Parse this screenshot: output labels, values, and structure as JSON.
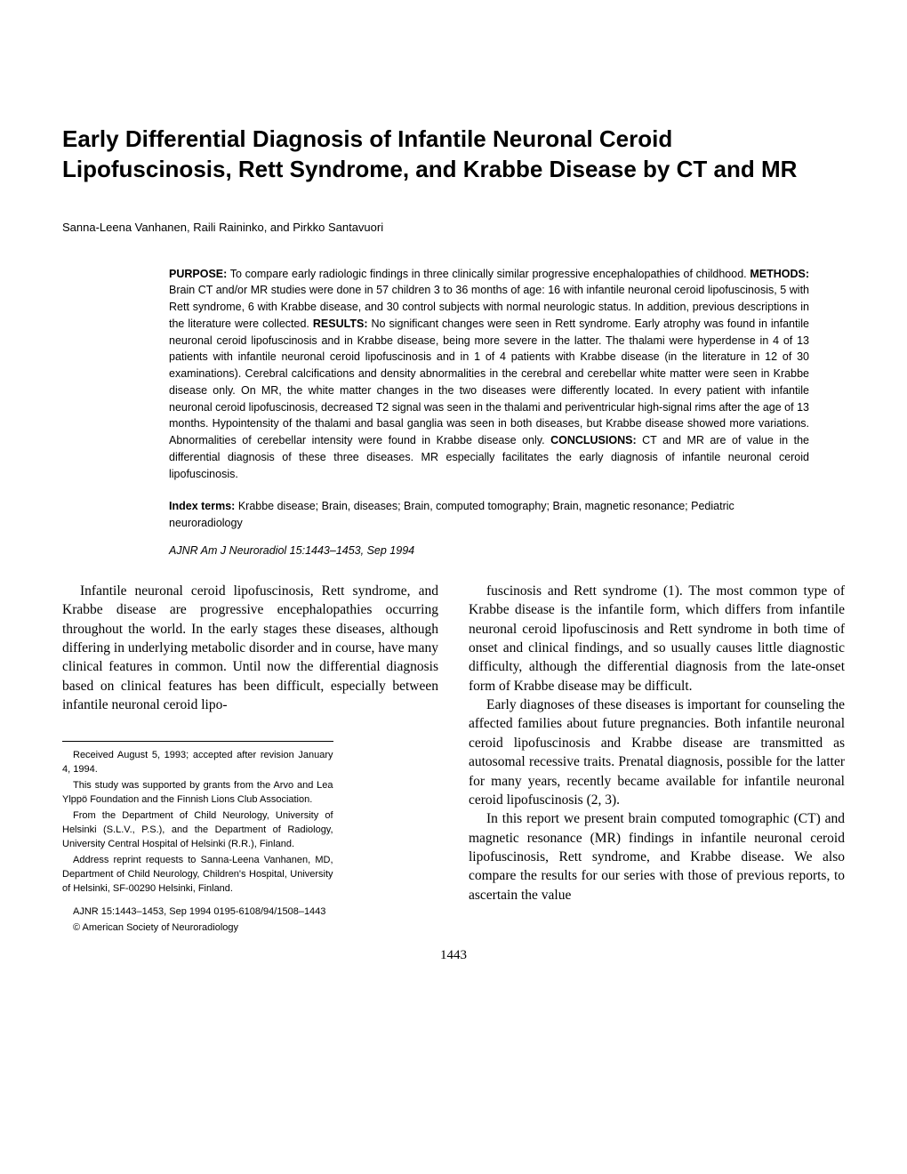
{
  "title": "Early Differential Diagnosis of Infantile Neuronal Ceroid Lipofuscinosis, Rett Syndrome, and Krabbe Disease by CT and MR",
  "authors": "Sanna-Leena Vanhanen, Raili Raininko, and Pirkko Santavuori",
  "abstract": {
    "purpose_label": "PURPOSE:",
    "purpose": " To compare early radiologic findings in three clinically similar progressive encephalopathies of childhood. ",
    "methods_label": "METHODS:",
    "methods": " Brain CT and/or MR studies were done in 57 children 3 to 36 months of age: 16 with infantile neuronal ceroid lipofuscinosis, 5 with Rett syndrome, 6 with Krabbe disease, and 30 control subjects with normal neurologic status. In addition, previous descriptions in the literature were collected. ",
    "results_label": "RESULTS:",
    "results": " No significant changes were seen in Rett syndrome. Early atrophy was found in infantile neuronal ceroid lipofuscinosis and in Krabbe disease, being more severe in the latter. The thalami were hyperdense in 4 of 13 patients with infantile neuronal ceroid lipofuscinosis and in 1 of 4 patients with Krabbe disease (in the literature in 12 of 30 examinations). Cerebral calcifications and density abnormalities in the cerebral and cerebellar white matter were seen in Krabbe disease only. On MR, the white matter changes in the two diseases were differently located. In every patient with infantile neuronal ceroid lipofuscinosis, decreased T2 signal was seen in the thalami and periventricular high-signal rims after the age of 13 months. Hypointensity of the thalami and basal ganglia was seen in both diseases, but Krabbe disease showed more variations. Abnormalities of cerebellar intensity were found in Krabbe disease only. ",
    "conclusions_label": "CONCLUSIONS:",
    "conclusions": " CT and MR are of value in the differential diagnosis of these three diseases. MR especially facilitates the early diagnosis of infantile neuronal ceroid lipofuscinosis."
  },
  "index_terms_label": "Index terms:",
  "index_terms": " Krabbe disease; Brain, diseases; Brain, computed tomography; Brain, magnetic resonance; Pediatric neuroradiology",
  "citation": "AJNR Am J Neuroradiol 15:1443–1453, Sep 1994",
  "body": {
    "left_p1": "Infantile neuronal ceroid lipofuscinosis, Rett syndrome, and Krabbe disease are progressive encephalopathies occurring throughout the world. In the early stages these diseases, although differing in underlying metabolic disorder and in course, have many clinical features in common. Until now the differential diagnosis based on clinical features has been difficult, especially between infantile neuronal ceroid lipo-",
    "right_p1": "fuscinosis and Rett syndrome (1). The most common type of Krabbe disease is the infantile form, which differs from infantile neuronal ceroid lipofuscinosis and Rett syndrome in both time of onset and clinical findings, and so usually causes little diagnostic difficulty, although the differential diagnosis from the late-onset form of Krabbe disease may be difficult.",
    "right_p2": "Early diagnoses of these diseases is important for counseling the affected families about future pregnancies. Both infantile neuronal ceroid lipofuscinosis and Krabbe disease are transmitted as autosomal recessive traits. Prenatal diagnosis, possible for the latter for many years, recently became available for infantile neuronal ceroid lipofuscinosis (2, 3).",
    "right_p3": "In this report we present brain computed tomographic (CT) and magnetic resonance (MR) findings in infantile neuronal ceroid lipofuscinosis, Rett syndrome, and Krabbe disease. We also compare the results for our series with those of previous reports, to ascertain the value"
  },
  "footnotes": {
    "f1": "Received August 5, 1993; accepted after revision January 4, 1994.",
    "f2": "This study was supported by grants from the Arvo and Lea Ylppö Foundation and the Finnish Lions Club Association.",
    "f3": "From the Department of Child Neurology, University of Helsinki (S.L.V., P.S.), and the Department of Radiology, University Central Hospital of Helsinki (R.R.), Finland.",
    "f4": "Address reprint requests to Sanna-Leena Vanhanen, MD, Department of Child Neurology, Children's Hospital, University of Helsinki, SF-00290 Helsinki, Finland.",
    "f5": "AJNR 15:1443–1453, Sep 1994 0195-6108/94/1508–1443",
    "f6": "© American Society of Neuroradiology"
  },
  "page_number": "1443"
}
